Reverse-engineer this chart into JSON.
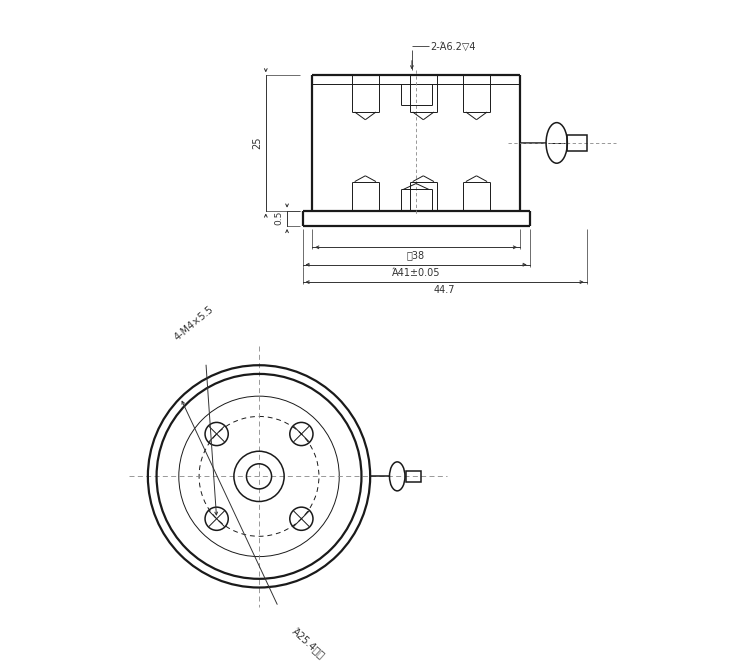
{
  "bg_color": "#ffffff",
  "line_color": "#1a1a1a",
  "dim_color": "#333333",
  "thin_lw": 0.7,
  "medium_lw": 1.1,
  "thick_lw": 1.6,
  "font_size": 7.0,
  "labels": {
    "dim_38": "΀38",
    "dim_41": "Ά41±0.05",
    "dim_447": "44.7",
    "dim_25": "25",
    "dim_05": "0.5",
    "dim_top": "2-Ά6.2▽4",
    "dim_bolt": "4-M4×5.5",
    "dim_outer": "Ά25.4配合"
  }
}
